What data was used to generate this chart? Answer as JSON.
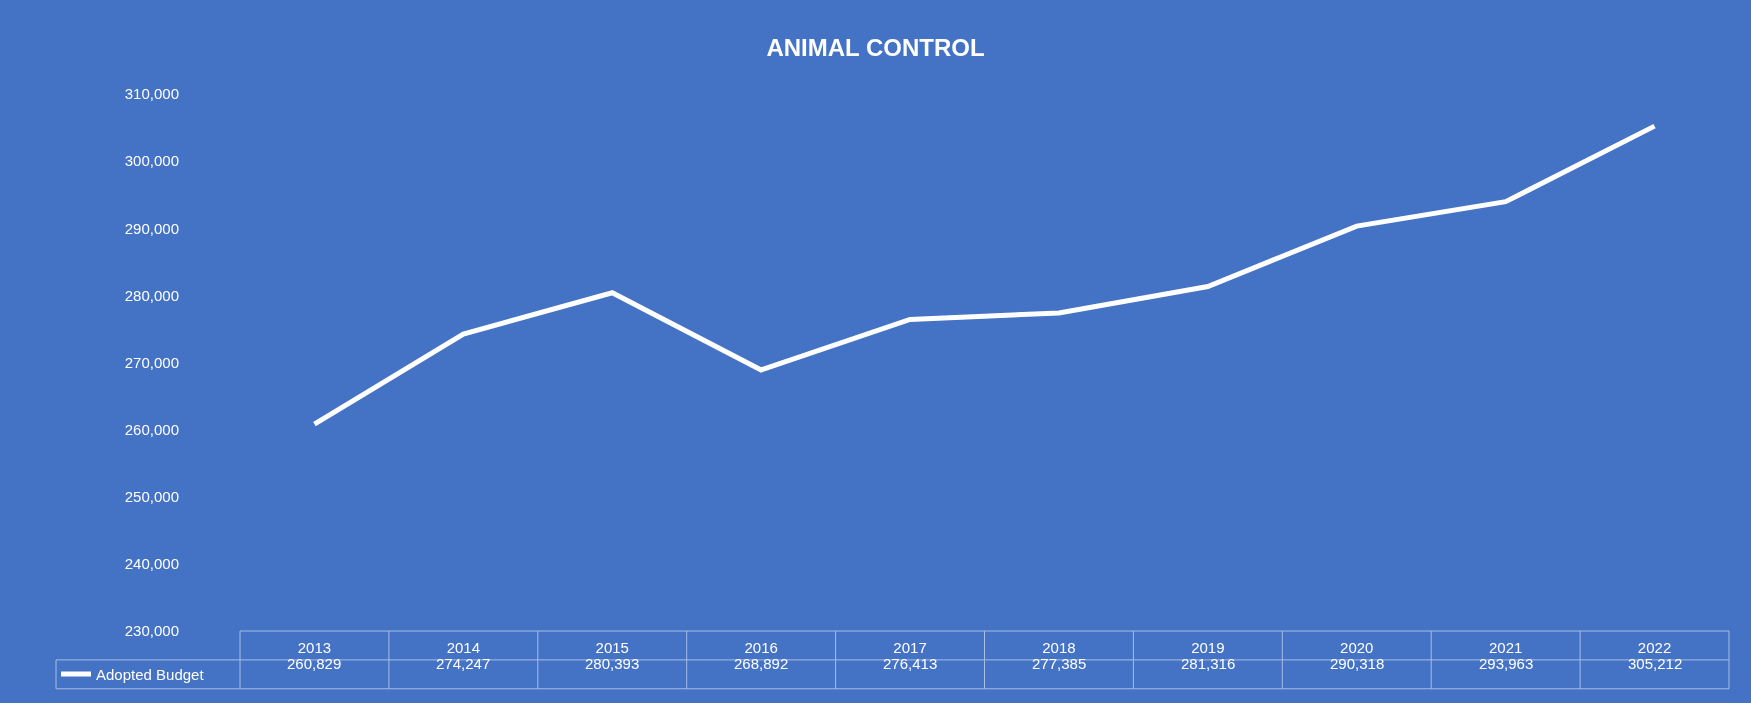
{
  "chart_data": {
    "type": "line",
    "title": "ANIMAL CONTROL",
    "categories": [
      "2013",
      "2014",
      "2015",
      "2016",
      "2017",
      "2018",
      "2019",
      "2020",
      "2021",
      "2022"
    ],
    "series": [
      {
        "name": "Adopted Budget",
        "color": "#ffffff",
        "values": [
          260829,
          274247,
          280393,
          268892,
          276413,
          277385,
          281316,
          290318,
          293963,
          305212
        ],
        "value_labels": [
          "260,829",
          "274,247",
          "280,393",
          "268,892",
          "276,413",
          "277,385",
          "281,316",
          "290,318",
          "293,963",
          "305,212"
        ]
      }
    ],
    "ylim": [
      230000,
      310000
    ],
    "yticks": [
      {
        "value": 230000,
        "label": "230,000"
      },
      {
        "value": 240000,
        "label": "240,000"
      },
      {
        "value": 250000,
        "label": "250,000"
      },
      {
        "value": 260000,
        "label": "260,000"
      },
      {
        "value": 270000,
        "label": "270,000"
      },
      {
        "value": 280000,
        "label": "280,000"
      },
      {
        "value": 290000,
        "label": "290,000"
      },
      {
        "value": 300000,
        "label": "300,000"
      },
      {
        "value": 310000,
        "label": "310,000"
      }
    ],
    "grid": false,
    "legend": "bottom left",
    "marker": "none",
    "line_style": "solid"
  }
}
